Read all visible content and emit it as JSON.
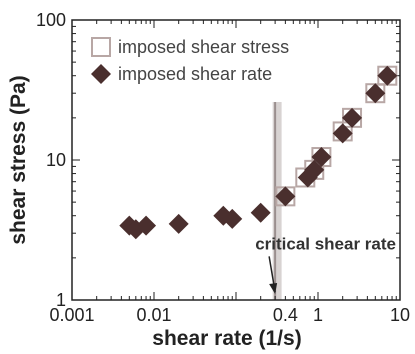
{
  "chart_data": {
    "type": "scatter",
    "xscale": "log",
    "yscale": "log",
    "xlim": [
      0.001,
      10
    ],
    "ylim": [
      1,
      100
    ],
    "xlabel": "shear rate (1/s)",
    "ylabel": "shear stress (Pa)",
    "x_tick_labels": [
      "0.001",
      "0.01",
      "0.4",
      "1",
      "10"
    ],
    "x_tick_values": [
      0.001,
      0.01,
      0.4,
      1,
      10
    ],
    "y_tick_labels": [
      "1",
      "10",
      "100"
    ],
    "y_tick_values": [
      1,
      10,
      100
    ],
    "grid": false,
    "legend_position": "top-right",
    "series": [
      {
        "name": "imposed shear stress",
        "marker": "open-square",
        "color": "#b8a7a5",
        "points": [
          {
            "x": 0.4,
            "y": 5.5
          },
          {
            "x": 0.7,
            "y": 7.5
          },
          {
            "x": 0.9,
            "y": 8.5
          },
          {
            "x": 1.1,
            "y": 10.5
          },
          {
            "x": 2.0,
            "y": 16
          },
          {
            "x": 2.6,
            "y": 20
          },
          {
            "x": 5.0,
            "y": 30
          },
          {
            "x": 7.0,
            "y": 40
          }
        ]
      },
      {
        "name": "imposed shear rate",
        "marker": "filled-diamond",
        "color": "#4a2f2e",
        "points": [
          {
            "x": 0.005,
            "y": 3.4
          },
          {
            "x": 0.006,
            "y": 3.2
          },
          {
            "x": 0.008,
            "y": 3.4
          },
          {
            "x": 0.02,
            "y": 3.5
          },
          {
            "x": 0.07,
            "y": 4.0
          },
          {
            "x": 0.09,
            "y": 3.8
          },
          {
            "x": 0.2,
            "y": 4.2
          },
          {
            "x": 0.4,
            "y": 5.5
          },
          {
            "x": 0.75,
            "y": 7.5
          },
          {
            "x": 0.9,
            "y": 8.5
          },
          {
            "x": 1.1,
            "y": 10.5
          },
          {
            "x": 2.0,
            "y": 15.5
          },
          {
            "x": 2.6,
            "y": 20
          },
          {
            "x": 5.0,
            "y": 30
          },
          {
            "x": 7.0,
            "y": 40
          }
        ]
      }
    ],
    "annotation": {
      "text": "critical shear rate",
      "x": 0.3,
      "band": [
        0.28,
        0.36
      ]
    },
    "colors": {
      "band": "#d8d3d2",
      "band_line": "#9a8f8e",
      "axis": "#222222"
    }
  }
}
